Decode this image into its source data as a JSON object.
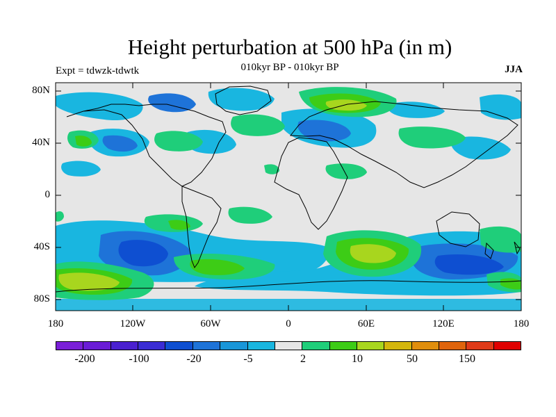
{
  "title": "Height perturbation at 500 hPa (in m)",
  "left_label": "Expt = tdwzk-tdwtk",
  "center_label": "010kyr BP - 010kyr BP",
  "right_label": "JJA",
  "lat_ticks": [
    "80N",
    "40N",
    "0",
    "40S",
    "80S"
  ],
  "lon_ticks": [
    "180",
    "120W",
    "60W",
    "0",
    "60E",
    "120E",
    "180"
  ],
  "colorbar": {
    "colors": [
      "#7a1fd8",
      "#6a1cd6",
      "#4a20d0",
      "#3a2cd4",
      "#0e4fd1",
      "#1e73d8",
      "#1996d8",
      "#19b6e0",
      "#e6e6e6",
      "#1fce7a",
      "#3dcc16",
      "#a8d61e",
      "#d4b60c",
      "#e08e0c",
      "#e0640c",
      "#e03a18",
      "#e00000"
    ],
    "labels": [
      "-200",
      "-100",
      "-20",
      "-5",
      "2",
      "10",
      "50",
      "150"
    ]
  }
}
